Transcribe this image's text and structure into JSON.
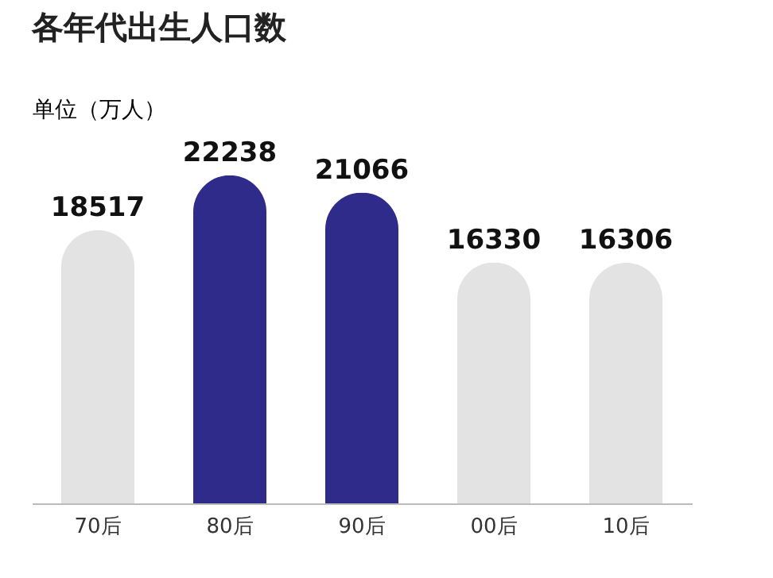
{
  "chart_data": {
    "type": "bar",
    "title": "各年代出生人口数",
    "ylabel": "单位（万人）",
    "categories": [
      "70后",
      "80后",
      "90后",
      "00后",
      "10后"
    ],
    "values": [
      18517,
      22238,
      21066,
      16330,
      16306
    ],
    "colors": [
      "#e3e3e3",
      "#2f2b8a",
      "#2f2b8a",
      "#e3e3e3",
      "#e3e3e3"
    ],
    "data_labels": true,
    "grid": false
  }
}
